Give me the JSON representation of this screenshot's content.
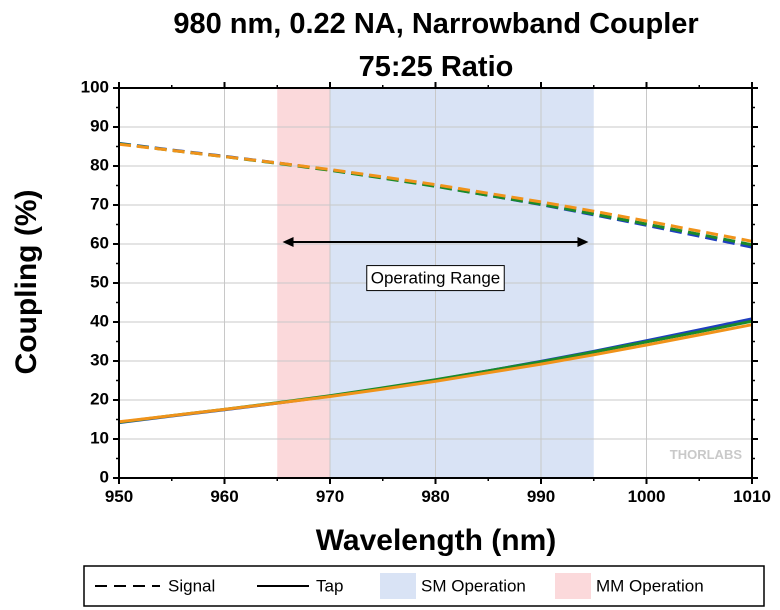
{
  "chart_data": {
    "type": "line",
    "title": "980 nm, 0.22 NA, Narrowband Coupler",
    "subtitle": "75:25 Ratio",
    "xlabel": "Wavelength (nm)",
    "ylabel": "Coupling (%)",
    "xlim": [
      950,
      1010
    ],
    "ylim": [
      0,
      100
    ],
    "x_ticks": [
      950,
      960,
      970,
      980,
      990,
      1000,
      1010
    ],
    "y_ticks": [
      0,
      10,
      20,
      30,
      40,
      50,
      60,
      70,
      80,
      90,
      100
    ],
    "grid": true,
    "x": [
      950,
      955,
      960,
      965,
      970,
      975,
      980,
      985,
      990,
      995,
      1000,
      1005,
      1010
    ],
    "series": [
      {
        "role": "signal",
        "style": "dashed",
        "color": "#1f3fbf",
        "values": [
          85.8,
          84.1,
          82.5,
          80.8,
          79.0,
          77.0,
          74.9,
          72.5,
          70.1,
          67.5,
          64.8,
          62.0,
          59.2
        ]
      },
      {
        "role": "signal",
        "style": "dashed",
        "color": "#1b8a2a",
        "values": [
          85.7,
          84.0,
          82.4,
          80.7,
          78.9,
          76.9,
          74.8,
          72.5,
          70.2,
          67.7,
          65.1,
          62.5,
          59.8
        ]
      },
      {
        "role": "signal",
        "style": "dashed",
        "color": "#f0931a",
        "values": [
          85.6,
          84.0,
          82.4,
          80.8,
          79.1,
          77.2,
          75.2,
          73.0,
          70.8,
          68.4,
          65.9,
          63.3,
          60.7
        ]
      },
      {
        "role": "tap",
        "style": "solid",
        "color": "#1f3fbf",
        "values": [
          14.2,
          15.9,
          17.5,
          19.2,
          21.0,
          23.0,
          25.1,
          27.5,
          29.9,
          32.5,
          35.2,
          38.0,
          40.8
        ]
      },
      {
        "role": "tap",
        "style": "solid",
        "color": "#1b8a2a",
        "values": [
          14.3,
          16.0,
          17.6,
          19.3,
          21.1,
          23.1,
          25.2,
          27.5,
          29.8,
          32.3,
          34.9,
          37.5,
          40.2
        ]
      },
      {
        "role": "tap",
        "style": "solid",
        "color": "#f0931a",
        "values": [
          14.4,
          16.0,
          17.6,
          19.2,
          20.9,
          22.8,
          24.8,
          27.0,
          29.2,
          31.6,
          34.1,
          36.7,
          39.3
        ]
      }
    ],
    "regions": [
      {
        "name": "MM Operation",
        "x_start": 965,
        "x_end": 970,
        "color": "#fbd9db"
      },
      {
        "name": "SM Operation",
        "x_start": 970,
        "x_end": 995,
        "color": "#d9e3f5"
      }
    ],
    "annotation": {
      "text": "Operating Range",
      "x_start": 965.5,
      "x_end": 994.5,
      "y": 60.5,
      "label_x": 980,
      "label_y": 51
    },
    "legend": {
      "placement": "bottom",
      "items": [
        {
          "label": "Signal",
          "kind": "dashed-line",
          "color": "#000000"
        },
        {
          "label": "Tap",
          "kind": "solid-line",
          "color": "#000000"
        },
        {
          "label": "SM Operation",
          "kind": "swatch",
          "color": "#d9e3f5"
        },
        {
          "label": "MM Operation",
          "kind": "swatch",
          "color": "#fbd9db"
        }
      ]
    },
    "watermark": "THORLABS"
  }
}
